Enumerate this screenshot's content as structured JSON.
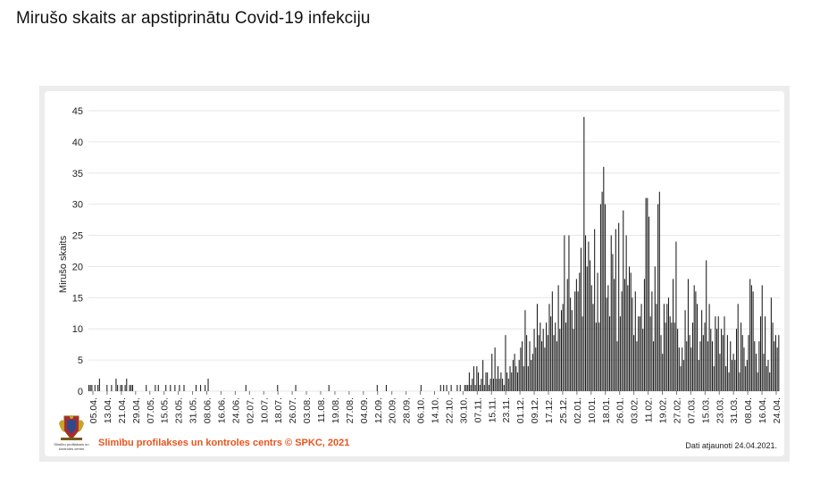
{
  "title": "Mirušo skaits ar apstiprinātu Covid-19 infekciju",
  "footer": {
    "source": "Slimību profilakses un kontroles centrs © SPKC, 2021",
    "updated": "Dati atjaunoti 24.04.2021.",
    "logo_text": "Slimību profilakses un kontroles centrs"
  },
  "colors": {
    "bar": "#1a1a1a",
    "grid": "#e6e6e6",
    "source": "#e8541e"
  },
  "chart_data": {
    "type": "bar",
    "title": "",
    "xlabel": "",
    "ylabel": "Mirušo skaits",
    "ylim": [
      0,
      45
    ],
    "y_ticks": [
      0,
      5,
      10,
      15,
      20,
      25,
      30,
      35,
      40,
      45
    ],
    "grid": true,
    "x_tick_labels": [
      "05.04.",
      "13.04.",
      "21.04.",
      "29.04.",
      "07.05.",
      "15.05.",
      "23.05.",
      "31.05.",
      "08.06.",
      "16.06.",
      "24.06.",
      "02.07.",
      "10.07.",
      "18.07.",
      "26.07.",
      "03.08.",
      "11.08.",
      "19.08.",
      "27.08.",
      "04.09.",
      "12.09.",
      "20.09.",
      "28.09.",
      "06.10.",
      "14.10.",
      "22.10.",
      "30.10.",
      "07.11.",
      "15.11.",
      "23.11.",
      "01.12.",
      "09.12.",
      "17.12.",
      "25.12.",
      "02.01.",
      "10.01.",
      "18.01.",
      "26.01.",
      "03.02.",
      "11.02.",
      "19.02.",
      "27.02.",
      "07.03.",
      "15.03.",
      "23.03.",
      "31.03.",
      "08.04.",
      "16.04.",
      "24.04."
    ],
    "values": [
      1,
      1,
      1,
      0,
      1,
      0,
      1,
      2,
      0,
      0,
      0,
      0,
      1,
      0,
      0,
      1,
      0,
      0,
      2,
      1,
      0,
      1,
      1,
      0,
      1,
      2,
      0,
      1,
      1,
      1,
      0,
      0,
      0,
      0,
      0,
      0,
      0,
      0,
      1,
      0,
      0,
      0,
      0,
      0,
      1,
      0,
      1,
      0,
      0,
      0,
      0,
      1,
      0,
      0,
      1,
      0,
      0,
      1,
      0,
      0,
      1,
      0,
      0,
      1,
      0,
      0,
      0,
      0,
      0,
      0,
      0,
      1,
      0,
      0,
      1,
      0,
      0,
      1,
      0,
      2,
      0,
      0,
      0,
      0,
      0,
      0,
      0,
      0,
      0,
      0,
      0,
      0,
      0,
      0,
      0,
      0,
      0,
      0,
      0,
      0,
      0,
      0,
      0,
      0,
      1,
      0,
      0,
      0,
      0,
      0,
      0,
      0,
      0,
      0,
      0,
      0,
      0,
      0,
      0,
      0,
      0,
      0,
      0,
      0,
      0,
      1,
      0,
      0,
      0,
      0,
      0,
      0,
      0,
      0,
      0,
      0,
      0,
      1,
      0,
      0,
      0,
      0,
      0,
      0,
      0,
      0,
      0,
      0,
      0,
      0,
      0,
      0,
      0,
      0,
      0,
      0,
      0,
      0,
      0,
      1,
      0,
      0,
      0,
      0,
      0,
      0,
      0,
      0,
      0,
      0,
      0,
      0,
      0,
      0,
      0,
      0,
      0,
      0,
      0,
      0,
      0,
      0,
      0,
      0,
      0,
      0,
      0,
      0,
      0,
      0,
      0,
      1,
      0,
      0,
      0,
      0,
      0,
      1,
      0,
      0,
      0,
      0,
      0,
      0,
      0,
      0,
      0,
      0,
      0,
      0,
      0,
      0,
      0,
      0,
      0,
      0,
      0,
      0,
      0,
      0,
      1,
      0,
      0,
      0,
      0,
      0,
      0,
      0,
      0,
      0,
      0,
      0,
      0,
      1,
      0,
      1,
      0,
      1,
      0,
      0,
      1,
      0,
      0,
      0,
      1,
      0,
      1,
      0,
      0,
      1,
      1,
      1,
      3,
      1,
      2,
      4,
      1,
      4,
      3,
      1,
      2,
      5,
      1,
      3,
      3,
      1,
      2,
      6,
      2,
      7,
      2,
      4,
      2,
      3,
      2,
      1,
      9,
      3,
      2,
      4,
      3,
      5,
      6,
      4,
      3,
      5,
      7,
      8,
      4,
      13,
      9,
      4,
      8,
      5,
      6,
      10,
      7,
      14,
      9,
      11,
      8,
      10,
      7,
      11,
      9,
      14,
      12,
      16,
      9,
      11,
      8,
      17,
      10,
      13,
      14,
      25,
      11,
      18,
      25,
      15,
      13,
      10,
      16,
      18,
      16,
      19,
      23,
      12,
      44,
      25,
      20,
      24,
      21,
      17,
      14,
      26,
      11,
      19,
      11,
      30,
      32,
      36,
      30,
      15,
      17,
      12,
      25,
      22,
      18,
      26,
      8,
      27,
      12,
      16,
      29,
      18,
      25,
      17,
      20,
      19,
      15,
      9,
      16,
      8,
      12,
      12,
      14,
      10,
      18,
      31,
      31,
      28,
      12,
      16,
      8,
      20,
      14,
      30,
      32,
      9,
      6,
      14,
      11,
      14,
      15,
      12,
      11,
      18,
      11,
      24,
      10,
      7,
      4,
      7,
      5,
      13,
      8,
      18,
      9,
      7,
      11,
      17,
      16,
      14,
      5,
      8,
      13,
      9,
      11,
      21,
      8,
      14,
      10,
      8,
      4,
      12,
      10,
      12,
      6,
      10,
      9,
      12,
      4,
      9,
      3,
      8,
      5,
      6,
      5,
      10,
      14,
      3,
      11,
      9,
      7,
      4,
      5,
      9,
      18,
      17,
      16,
      8,
      6,
      3,
      8,
      12,
      17,
      6,
      12,
      4,
      5,
      3,
      15,
      11,
      8,
      9,
      7,
      9
    ]
  }
}
